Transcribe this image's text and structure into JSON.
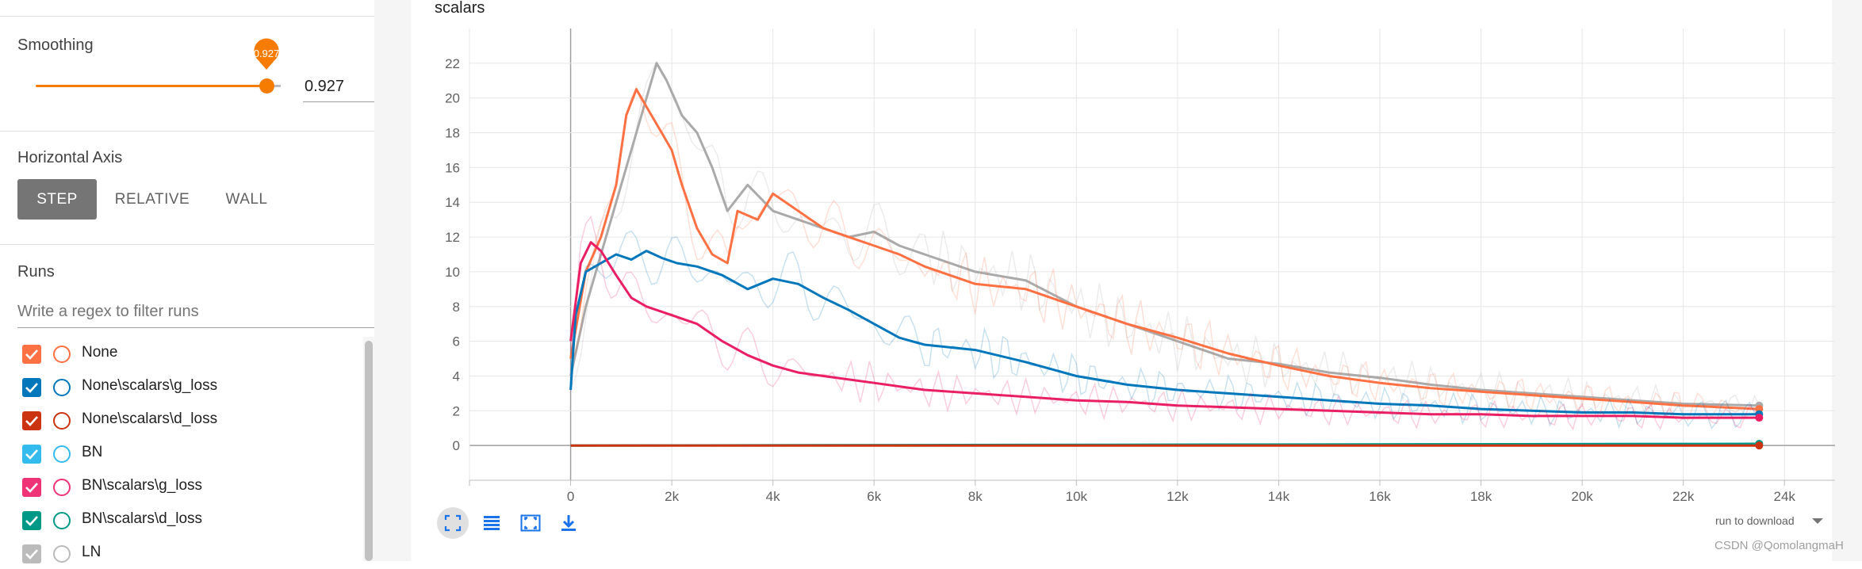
{
  "smoothing": {
    "title": "Smoothing",
    "value": 0.927,
    "pin_label": "0.927",
    "input_value": "0.927",
    "accent_color": "#f57c00"
  },
  "horizontal_axis": {
    "title": "Horizontal Axis",
    "options": [
      "STEP",
      "RELATIVE",
      "WALL"
    ],
    "selected": "STEP"
  },
  "runs": {
    "title": "Runs",
    "filter_placeholder": "Write a regex to filter runs",
    "items": [
      {
        "label": "None",
        "checked": true,
        "color": "#ff7043"
      },
      {
        "label": "None\\scalars\\g_loss",
        "checked": true,
        "color": "#0077bb"
      },
      {
        "label": "None\\scalars\\d_loss",
        "checked": true,
        "color": "#cc3311"
      },
      {
        "label": "BN",
        "checked": true,
        "color": "#33bbee"
      },
      {
        "label": "BN\\scalars\\g_loss",
        "checked": true,
        "color": "#ee3377"
      },
      {
        "label": "BN\\scalars\\d_loss",
        "checked": true,
        "color": "#009988"
      },
      {
        "label": "LN",
        "checked": true,
        "color": "#bbbbbb"
      }
    ]
  },
  "card": {
    "title": "scalars",
    "toolbar_icons": [
      "fit-domain-icon",
      "toggle-log-icon",
      "expand-icon",
      "download-icon"
    ],
    "download_label": "run to download",
    "watermark": "CSDN @QomolangmaH"
  },
  "chart_data": {
    "type": "line",
    "xlabel": "",
    "ylabel": "",
    "xlim": [
      -2000,
      25000
    ],
    "ylim": [
      -2,
      24
    ],
    "x_ticks": [
      0,
      2000,
      4000,
      6000,
      8000,
      10000,
      12000,
      14000,
      16000,
      18000,
      20000,
      22000,
      24000
    ],
    "x_tick_labels": [
      "0",
      "2k",
      "4k",
      "6k",
      "8k",
      "10k",
      "12k",
      "14k",
      "16k",
      "18k",
      "20k",
      "22k",
      "24k"
    ],
    "y_ticks": [
      0,
      2,
      4,
      6,
      8,
      10,
      12,
      14,
      16,
      18,
      20,
      22
    ],
    "y_tick_labels": [
      "0",
      "2",
      "4",
      "6",
      "8",
      "10",
      "12",
      "14",
      "16",
      "18",
      "20",
      "22"
    ],
    "grid": true,
    "series": [
      {
        "name": "LN",
        "color": "#aaaaaa",
        "x": [
          0,
          300,
          600,
          900,
          1200,
          1500,
          1700,
          1900,
          2200,
          2500,
          2800,
          3100,
          3500,
          4000,
          4500,
          5000,
          5500,
          6000,
          6500,
          7000,
          8000,
          9000,
          10000,
          11000,
          12000,
          13000,
          14000,
          15000,
          16000,
          17000,
          18000,
          19000,
          20000,
          21000,
          22000,
          23500
        ],
        "y": [
          4.0,
          8.0,
          11.0,
          14.0,
          17.0,
          20.0,
          22.0,
          21.0,
          19.0,
          18.0,
          16.0,
          13.5,
          15.0,
          13.5,
          13.0,
          12.5,
          12.0,
          12.3,
          11.5,
          11.0,
          10.0,
          9.5,
          8.0,
          7.0,
          6.0,
          5.0,
          4.7,
          4.2,
          3.9,
          3.5,
          3.2,
          3.0,
          2.8,
          2.6,
          2.4,
          2.3
        ]
      },
      {
        "name": "None",
        "color": "#ff7043",
        "x": [
          0,
          300,
          600,
          900,
          1100,
          1300,
          1500,
          1800,
          2000,
          2200,
          2500,
          2800,
          3100,
          3300,
          3700,
          4000,
          4500,
          5000,
          5500,
          6000,
          6500,
          7000,
          8000,
          9000,
          10000,
          11000,
          12000,
          13000,
          14000,
          15000,
          16000,
          17000,
          18000,
          19000,
          20000,
          21000,
          22000,
          23500
        ],
        "y": [
          5.0,
          10.0,
          12.0,
          15.0,
          19.0,
          20.5,
          19.5,
          18.0,
          17.0,
          15.0,
          12.5,
          11.0,
          10.5,
          13.5,
          13.0,
          14.5,
          13.5,
          12.5,
          12.0,
          11.5,
          11.0,
          10.3,
          9.3,
          9.0,
          8.0,
          7.0,
          6.2,
          5.3,
          4.6,
          4.0,
          3.6,
          3.3,
          3.1,
          2.9,
          2.7,
          2.5,
          2.3,
          2.1
        ]
      },
      {
        "name": "None\\scalars\\g_loss",
        "color": "#0077bb",
        "x": [
          0,
          100,
          300,
          600,
          900,
          1200,
          1500,
          1800,
          2100,
          2500,
          3000,
          3500,
          4000,
          4500,
          5000,
          5500,
          6000,
          6500,
          7000,
          8000,
          9000,
          10000,
          11000,
          12000,
          13000,
          14000,
          15000,
          16000,
          17000,
          18000,
          19000,
          20000,
          21000,
          22000,
          23500
        ],
        "y": [
          3.2,
          7.5,
          10.0,
          10.5,
          11.0,
          10.7,
          11.2,
          10.8,
          10.5,
          10.3,
          9.8,
          9.0,
          9.6,
          9.3,
          8.5,
          7.8,
          7.0,
          6.2,
          5.8,
          5.5,
          4.8,
          4.0,
          3.5,
          3.2,
          3.0,
          2.8,
          2.6,
          2.4,
          2.3,
          2.1,
          2.0,
          1.9,
          1.9,
          1.8,
          1.8
        ]
      },
      {
        "name": "BN\\scalars\\g_loss",
        "color": "#e91e63",
        "x": [
          0,
          200,
          400,
          600,
          900,
          1200,
          1500,
          2000,
          2500,
          3000,
          3500,
          4000,
          4500,
          5000,
          6000,
          7000,
          8000,
          9000,
          10000,
          11000,
          12000,
          13000,
          14000,
          15000,
          16000,
          17000,
          18000,
          19000,
          20000,
          21000,
          22000,
          23500
        ],
        "y": [
          6.0,
          10.5,
          11.7,
          11.2,
          9.8,
          8.5,
          8.0,
          7.5,
          7.0,
          6.0,
          5.2,
          4.6,
          4.2,
          4.0,
          3.6,
          3.2,
          3.0,
          2.8,
          2.6,
          2.5,
          2.3,
          2.2,
          2.1,
          2.0,
          1.9,
          1.8,
          1.8,
          1.7,
          1.7,
          1.7,
          1.6,
          1.6
        ]
      },
      {
        "name": "BN\\scalars\\d_loss",
        "color": "#009988",
        "x": [
          0,
          23500
        ],
        "y": [
          0.0,
          0.1
        ]
      },
      {
        "name": "None\\scalars\\d_loss",
        "color": "#cc3311",
        "x": [
          0,
          23500
        ],
        "y": [
          0.0,
          0.0
        ]
      }
    ]
  }
}
